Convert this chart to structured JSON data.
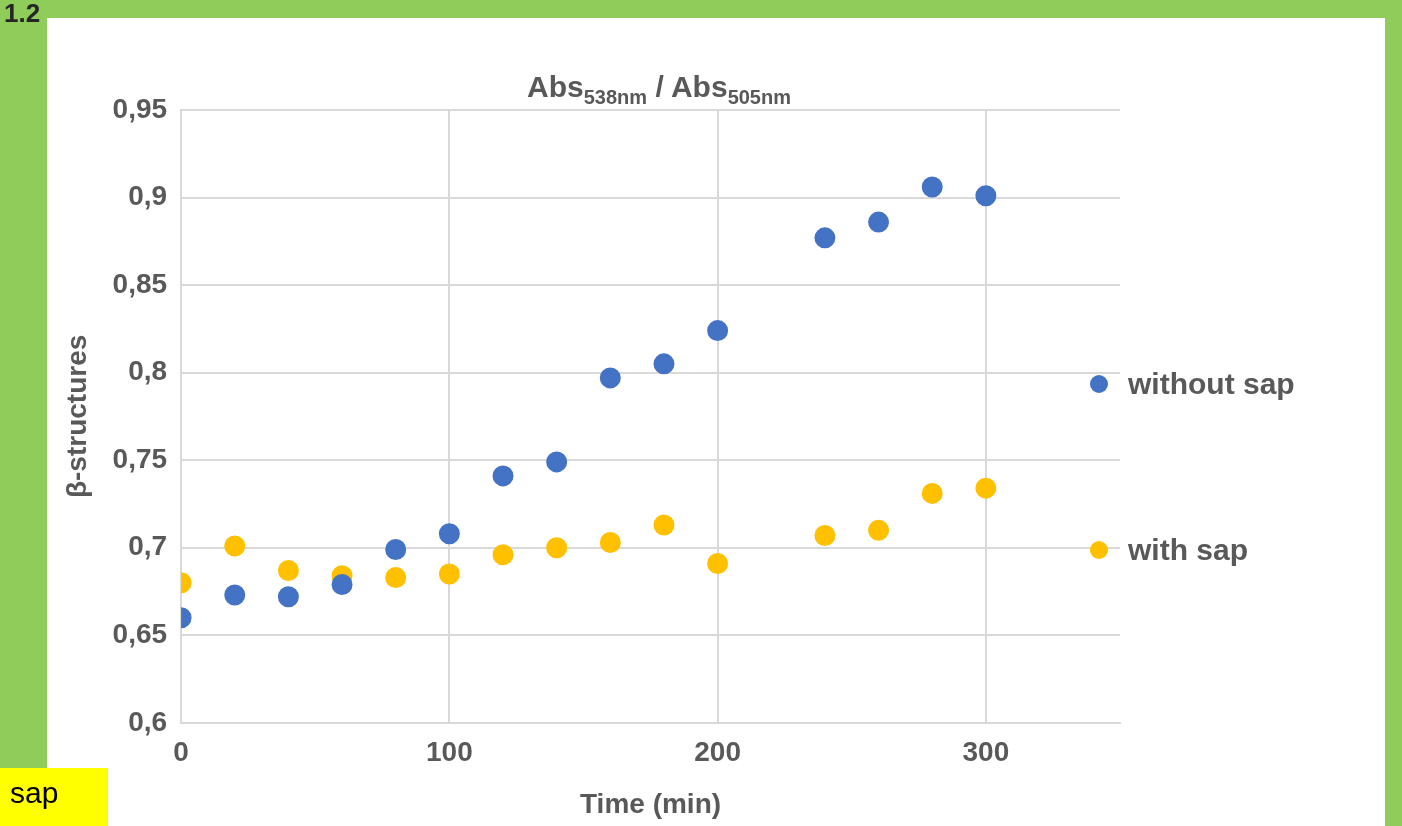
{
  "chart_data": {
    "type": "scatter",
    "title": "Abs$_{538nm}$ / Abs$_{505nm}$",
    "xlabel": "Time (min)",
    "ylabel": "β-structures",
    "annotations": [
      "1.2",
      "sap"
    ],
    "x": [
      0,
      20,
      40,
      60,
      80,
      100,
      120,
      140,
      160,
      180,
      200,
      240,
      260,
      280,
      300
    ],
    "series": [
      {
        "name": "without sap",
        "color": "#4472c4",
        "values": [
          0.66,
          0.673,
          0.672,
          0.679,
          0.699,
          0.708,
          0.741,
          0.749,
          0.797,
          0.805,
          0.824,
          0.877,
          0.886,
          0.906,
          0.901
        ]
      },
      {
        "name": "with sap",
        "color": "#ffc000",
        "values": [
          0.68,
          0.701,
          0.687,
          0.684,
          0.683,
          0.685,
          0.696,
          0.7,
          0.703,
          0.713,
          0.691,
          0.707,
          0.71,
          0.731,
          0.734
        ]
      }
    ],
    "xlim": [
      0,
      350
    ],
    "xticks": [
      0,
      100,
      200,
      300
    ],
    "ylim": [
      0.6,
      0.95
    ],
    "yticks": [
      {
        "value": 0.6,
        "label": "0,6"
      },
      {
        "value": 0.65,
        "label": "0,65"
      },
      {
        "value": 0.7,
        "label": "0,7"
      },
      {
        "value": 0.75,
        "label": "0,75"
      },
      {
        "value": 0.8,
        "label": "0,8"
      },
      {
        "value": 0.85,
        "label": "0,85"
      },
      {
        "value": 0.9,
        "label": "0,9"
      },
      {
        "value": 0.95,
        "label": "0,95"
      }
    ],
    "grid": true,
    "legend": "right",
    "marker": "circle"
  }
}
